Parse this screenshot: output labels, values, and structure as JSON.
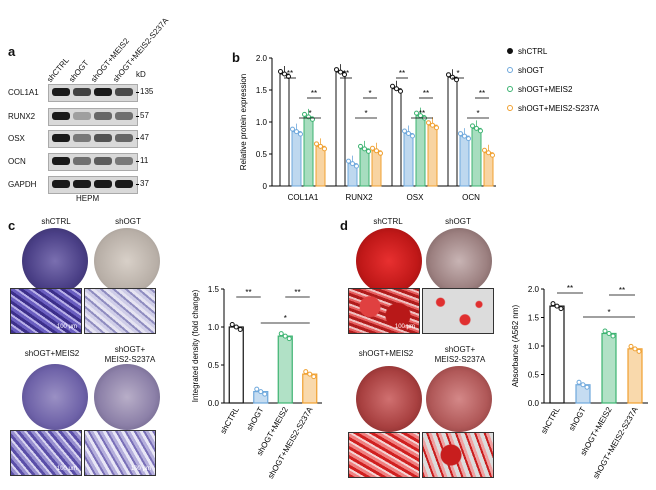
{
  "panels": {
    "a": "a",
    "b": "b",
    "c": "c",
    "d": "d"
  },
  "blot": {
    "lanes": [
      "shCTRL",
      "shOGT",
      "shOGT+MEIS2",
      "shOGT+MEIS2-S237A"
    ],
    "kd_label": "kD",
    "rows": [
      {
        "protein": "COL1A1",
        "kd": "135"
      },
      {
        "protein": "RUNX2",
        "kd": "57"
      },
      {
        "protein": "OSX",
        "kd": "47"
      },
      {
        "protein": "OCN",
        "kd": "11"
      },
      {
        "protein": "GAPDH",
        "kd": "37"
      }
    ],
    "cell_type": "HEPM"
  },
  "conditions": {
    "shCTRL": "shCTRL",
    "shOGT": "shOGT",
    "meis2": "shOGT+MEIS2",
    "s237a_line1": "shOGT+",
    "s237a_line2": "MEIS2-S237A"
  },
  "scale_bar": "100 μm",
  "colors": {
    "shCTRL": "#111111",
    "shOGT": "#6fa8dc",
    "meis2": "#3cb371",
    "s237a": "#f0a030",
    "alp": "#4a3f86",
    "ars": "#c81e1e"
  },
  "chart_data": [
    {
      "type": "bar",
      "ylabel": "Relative protein expression",
      "ylim": [
        0,
        2.0
      ],
      "yticks": [
        "0",
        "0.5",
        "1.0",
        "1.5",
        "2.0"
      ],
      "categories": [
        "COL1A1",
        "RUNX2",
        "OSX",
        "OCN"
      ],
      "series": [
        {
          "name": "shCTRL",
          "values": [
            1.75,
            1.78,
            1.52,
            1.7
          ]
        },
        {
          "name": "shOGT",
          "values": [
            0.85,
            0.35,
            0.82,
            0.78
          ]
        },
        {
          "name": "shOGT+MEIS2",
          "values": [
            1.08,
            0.58,
            1.1,
            0.9
          ]
        },
        {
          "name": "shOGT+MEIS2-S237A",
          "values": [
            0.62,
            0.55,
            0.95,
            0.52
          ]
        }
      ],
      "significance": [
        "**",
        "**",
        "*",
        "**",
        "*",
        "*",
        "**",
        "**",
        "**",
        "*",
        "**",
        "*"
      ],
      "legend": "right"
    },
    {
      "type": "bar",
      "ylabel": "Integrated density (fold change)",
      "ylim": [
        0,
        1.5
      ],
      "yticks": [
        "0.0",
        "0.5",
        "1.0",
        "1.5"
      ],
      "categories": [
        "shCTRL",
        "shOGT",
        "shOGT+MEIS2",
        "shOGT+MEIS2-S237A"
      ],
      "values": [
        1.0,
        0.15,
        0.88,
        0.38
      ],
      "significance": [
        "**",
        "**",
        "*"
      ]
    },
    {
      "type": "bar",
      "ylabel": "Absorbance (A562 nm)",
      "ylim": [
        0,
        2.0
      ],
      "yticks": [
        "0.0",
        "0.5",
        "1.0",
        "1.5",
        "2.0"
      ],
      "categories": [
        "shCTRL",
        "shOGT",
        "shOGT+MEIS2",
        "shOGT+MEIS2-S237A"
      ],
      "values": [
        1.7,
        0.32,
        1.22,
        0.95
      ],
      "significance": [
        "**",
        "**",
        "*"
      ]
    }
  ]
}
